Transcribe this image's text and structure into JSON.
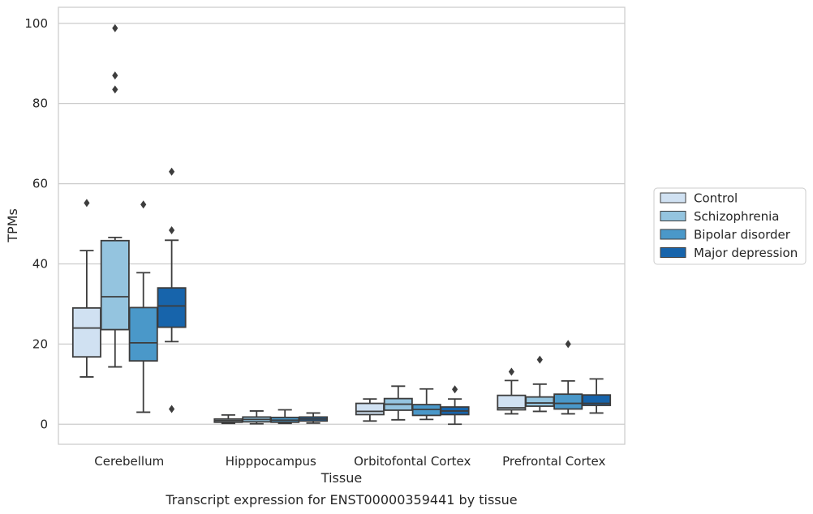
{
  "chart_data": {
    "type": "boxplot",
    "title": "Transcript expression for ENST00000359441 by tissue",
    "xlabel": "Tissue",
    "ylabel": "TPMs",
    "ylim": [
      -5,
      104
    ],
    "yticks": [
      0,
      20,
      40,
      60,
      80,
      100
    ],
    "grid": "horizontal",
    "legend_position": "right",
    "categories": [
      "Cerebellum",
      "Hipppocampus",
      "Orbitofontal Cortex",
      "Prefrontal Cortex"
    ],
    "series": [
      {
        "name": "Control",
        "color": "#d0e1f2",
        "boxes": [
          {
            "whislo": 11.8,
            "q1": 16.8,
            "med": 24.0,
            "q3": 29.0,
            "whishi": 43.3,
            "fliers": [
              55.2
            ]
          },
          {
            "whislo": 0.2,
            "q1": 0.5,
            "med": 0.9,
            "q3": 1.3,
            "whishi": 2.3,
            "fliers": []
          },
          {
            "whislo": 0.8,
            "q1": 2.4,
            "med": 3.2,
            "q3": 5.2,
            "whishi": 6.3,
            "fliers": []
          },
          {
            "whislo": 2.6,
            "q1": 3.6,
            "med": 4.1,
            "q3": 7.2,
            "whishi": 10.9,
            "fliers": [
              13.1
            ]
          }
        ]
      },
      {
        "name": "Schizophrenia",
        "color": "#94c4df",
        "boxes": [
          {
            "whislo": 14.3,
            "q1": 23.6,
            "med": 31.8,
            "q3": 45.8,
            "whishi": 46.6,
            "fliers": [
              83.5,
              87.0,
              98.8
            ]
          },
          {
            "whislo": 0.1,
            "q1": 0.6,
            "med": 1.2,
            "q3": 1.8,
            "whishi": 3.3,
            "fliers": []
          },
          {
            "whislo": 1.1,
            "q1": 3.5,
            "med": 5.0,
            "q3": 6.4,
            "whishi": 9.5,
            "fliers": []
          },
          {
            "whislo": 3.2,
            "q1": 4.5,
            "med": 5.3,
            "q3": 6.8,
            "whishi": 10.0,
            "fliers": [
              16.1
            ]
          }
        ]
      },
      {
        "name": "Bipolar disorder",
        "color": "#4a98c9",
        "boxes": [
          {
            "whislo": 3.0,
            "q1": 15.8,
            "med": 20.3,
            "q3": 29.1,
            "whishi": 37.8,
            "fliers": [
              54.8
            ]
          },
          {
            "whislo": 0.2,
            "q1": 0.5,
            "med": 1.0,
            "q3": 1.7,
            "whishi": 3.6,
            "fliers": []
          },
          {
            "whislo": 1.2,
            "q1": 2.2,
            "med": 3.7,
            "q3": 4.9,
            "whishi": 8.8,
            "fliers": []
          },
          {
            "whislo": 2.6,
            "q1": 3.8,
            "med": 5.2,
            "q3": 7.5,
            "whishi": 10.8,
            "fliers": [
              20.0
            ]
          }
        ]
      },
      {
        "name": "Major depression",
        "color": "#1764ab",
        "boxes": [
          {
            "whislo": 20.6,
            "q1": 24.2,
            "med": 29.5,
            "q3": 34.0,
            "whishi": 45.9,
            "fliers": [
              3.8,
              48.4,
              63.0
            ]
          },
          {
            "whislo": 0.3,
            "q1": 0.8,
            "med": 1.3,
            "q3": 1.8,
            "whishi": 2.8,
            "fliers": []
          },
          {
            "whislo": 0.0,
            "q1": 2.4,
            "med": 3.3,
            "q3": 4.3,
            "whishi": 6.3,
            "fliers": [
              8.7
            ]
          },
          {
            "whislo": 2.8,
            "q1": 4.7,
            "med": 5.2,
            "q3": 7.3,
            "whishi": 11.3,
            "fliers": []
          }
        ]
      }
    ]
  }
}
